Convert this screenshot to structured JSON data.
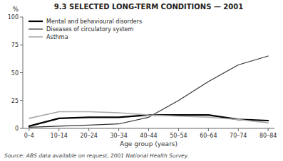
{
  "chart_data": {
    "type": "line",
    "title": "9.3   SELECTED LONG-TERM CONDITIONS — 2001",
    "xlabel": "Age group (years)",
    "ylabel": "%",
    "annotations": [
      "Source: ABS data available on request, 2001 National Health Survey."
    ],
    "categories": [
      "0–4",
      "10–14",
      "20–24",
      "30–34",
      "40–44",
      "50–54",
      "60–64",
      "70–74",
      "80–84"
    ],
    "series": [
      {
        "name": "Mental and behavioural disorders",
        "color": "#000000",
        "values": [
          2,
          9,
          10,
          10,
          12,
          12,
          12,
          8,
          7
        ]
      },
      {
        "name": "Diseases of circulatory system",
        "color": "#333333",
        "values": [
          1,
          2,
          3,
          4,
          10,
          25,
          42,
          57,
          65
        ]
      },
      {
        "name": "Asthma",
        "color": "#aaaaaa",
        "values": [
          9,
          15,
          15,
          14,
          12,
          11,
          10,
          8,
          5
        ]
      }
    ],
    "ylim": [
      0,
      100
    ],
    "yticks": [
      0,
      25,
      50,
      75,
      100
    ],
    "grid": false,
    "legend": "upper left"
  }
}
